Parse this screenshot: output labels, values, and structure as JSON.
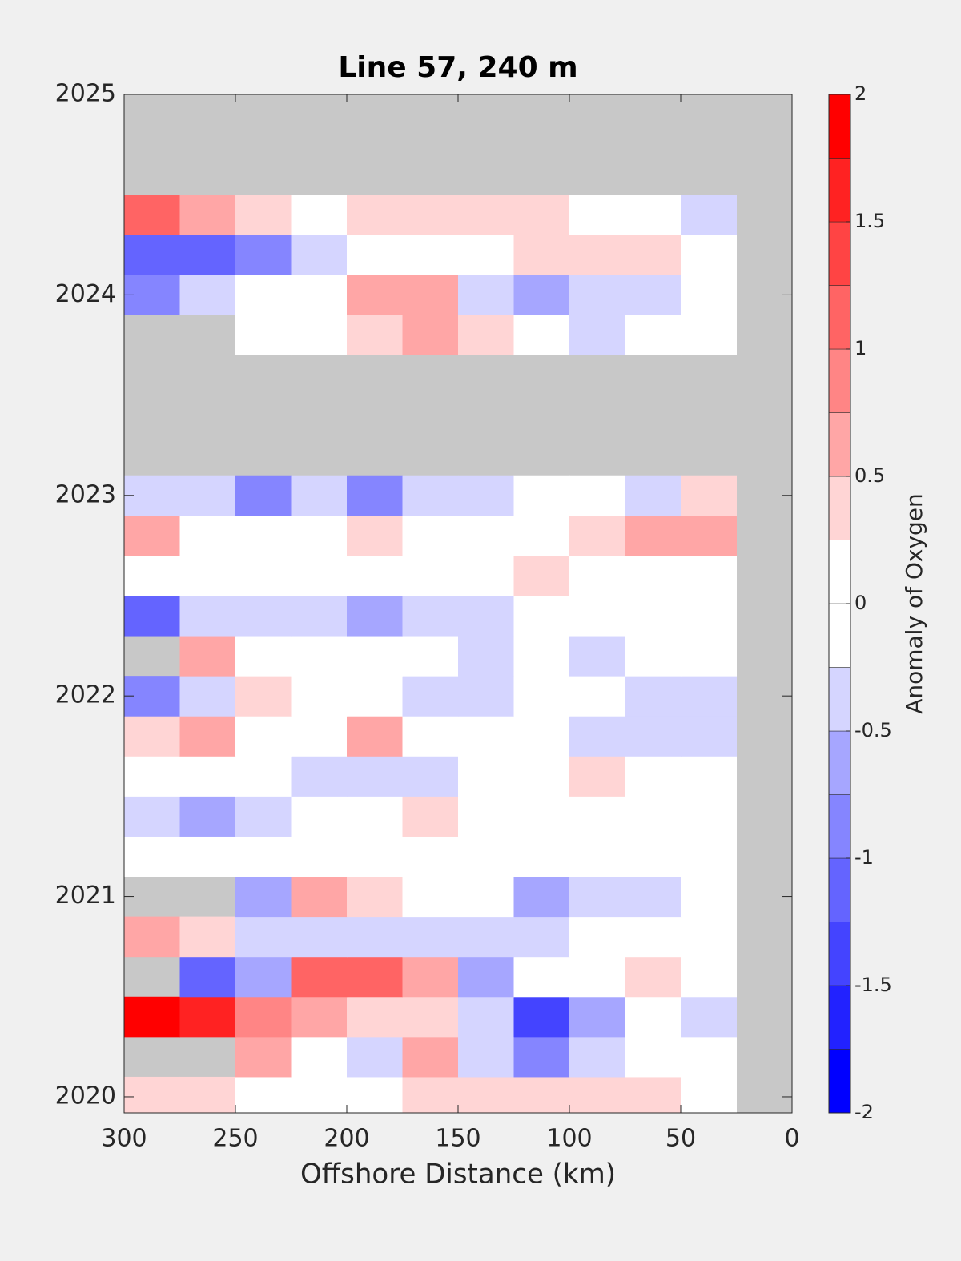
{
  "chart_data": {
    "type": "contour",
    "title": "Line 57, 240 m",
    "x_label": "Offshore Distance (km)",
    "colorbar_label": "Anomaly of Oxygen",
    "xlim": [
      300,
      0
    ],
    "xticks": [
      300,
      250,
      200,
      150,
      100,
      50,
      0
    ],
    "ylim": [
      2019.92,
      2025
    ],
    "yticks": [
      2020,
      2021,
      2022,
      2023,
      2024,
      2025
    ],
    "clim": [
      -2,
      2
    ],
    "cticks": [
      -2,
      -1.5,
      -1,
      -0.5,
      0,
      0.5,
      1,
      1.5,
      2
    ],
    "level_step": 0.25,
    "colormap": [
      "#0000ff",
      "#2222ff",
      "#4444ff",
      "#6464ff",
      "#8585ff",
      "#a6a6ff",
      "#d5d5ff",
      "#ffffff",
      "#ffffff",
      "#ffd5d5",
      "#ffa6a6",
      "#ff8585",
      "#ff6464",
      "#ff4444",
      "#ff2222",
      "#ff0000"
    ],
    "nan_color": "#c8c8c8",
    "x": [
      287.5,
      262.5,
      237.5,
      212.5,
      187.5,
      162.5,
      137.5,
      112.5,
      87.5,
      62.5,
      37.5,
      12.5
    ],
    "y": [
      2020.0,
      2020.2,
      2020.4,
      2020.6,
      2020.8,
      2021.0,
      2021.2,
      2021.4,
      2021.6,
      2021.8,
      2022.0,
      2022.2,
      2022.4,
      2022.6,
      2022.8,
      2023.0,
      2023.2,
      2023.4,
      2023.6,
      2023.8,
      2024.0,
      2024.2,
      2024.4,
      2024.6,
      2024.8
    ],
    "z": [
      [
        0.3,
        0.3,
        0,
        0,
        0,
        0.3,
        0.3,
        0.3,
        0.3,
        0.3,
        0,
        null
      ],
      [
        null,
        null,
        0.5,
        0,
        -0.5,
        0.5,
        -0.3,
        -0.9,
        -0.3,
        0,
        0,
        null
      ],
      [
        2.0,
        1.7,
        0.9,
        0.5,
        0.3,
        0.3,
        -0.3,
        -1.5,
        -0.7,
        0,
        -0.5,
        null
      ],
      [
        null,
        -1.2,
        -0.7,
        1.0,
        1.0,
        0.5,
        -0.7,
        0,
        0,
        0.3,
        0,
        null
      ],
      [
        0.5,
        0.3,
        -0.3,
        -0.5,
        -0.3,
        -0.3,
        -0.3,
        -0.3,
        0,
        0,
        0,
        null
      ],
      [
        null,
        null,
        -0.7,
        0.5,
        0.3,
        0,
        0,
        -0.7,
        -0.5,
        -0.3,
        0,
        null
      ],
      [
        0,
        0,
        0,
        0,
        0,
        0,
        0,
        0,
        0,
        0,
        0,
        null
      ],
      [
        -0.5,
        -0.7,
        -0.5,
        0,
        0,
        0.3,
        0,
        0,
        0,
        0,
        0,
        null
      ],
      [
        0,
        0,
        0,
        -0.3,
        -0.5,
        -0.3,
        0,
        0,
        0.3,
        0,
        0,
        null
      ],
      [
        0.3,
        0.5,
        0,
        0,
        0.5,
        0,
        0,
        0,
        -0.3,
        -0.5,
        -0.3,
        null
      ],
      [
        -1.0,
        -0.5,
        0.3,
        0,
        0,
        -0.3,
        -0.3,
        0,
        0,
        -0.3,
        -0.3,
        null
      ],
      [
        null,
        0.5,
        0,
        0,
        0,
        0,
        -0.3,
        0,
        -0.3,
        0,
        0,
        null
      ],
      [
        -1.2,
        -0.5,
        -0.3,
        -0.3,
        -0.7,
        -0.3,
        -0.3,
        0,
        0,
        0,
        0,
        null
      ],
      [
        0,
        0,
        0,
        0,
        0,
        0,
        0,
        0.3,
        0,
        0,
        0,
        null
      ],
      [
        0.7,
        0,
        0,
        0,
        0.3,
        0,
        0,
        0,
        0.3,
        0.5,
        0.7,
        null
      ],
      [
        -0.3,
        -0.5,
        -0.9,
        -0.5,
        -0.9,
        -0.5,
        -0.3,
        0,
        0,
        -0.3,
        0.3,
        null
      ],
      [
        null,
        null,
        null,
        null,
        null,
        null,
        null,
        null,
        null,
        null,
        null,
        null
      ],
      [
        null,
        null,
        null,
        null,
        null,
        null,
        null,
        null,
        null,
        null,
        null,
        null
      ],
      [
        null,
        null,
        null,
        null,
        null,
        null,
        null,
        null,
        null,
        null,
        null,
        null
      ],
      [
        null,
        null,
        0,
        0,
        0.3,
        0.7,
        0.3,
        0,
        -0.3,
        0,
        0,
        null
      ],
      [
        -0.9,
        -0.3,
        0,
        0,
        0.5,
        0.5,
        -0.5,
        -0.7,
        -0.5,
        -0.3,
        0,
        null
      ],
      [
        -1.2,
        -1.2,
        -0.9,
        -0.5,
        0,
        0,
        0,
        0.3,
        0.3,
        0.3,
        0,
        null
      ],
      [
        1.0,
        0.6,
        0.3,
        0,
        0.3,
        0.3,
        0.3,
        0.3,
        0,
        0,
        -0.3,
        null
      ],
      [
        null,
        null,
        null,
        null,
        null,
        null,
        null,
        null,
        null,
        null,
        null,
        null
      ],
      [
        null,
        null,
        null,
        null,
        null,
        null,
        null,
        null,
        null,
        null,
        null,
        null
      ]
    ]
  }
}
